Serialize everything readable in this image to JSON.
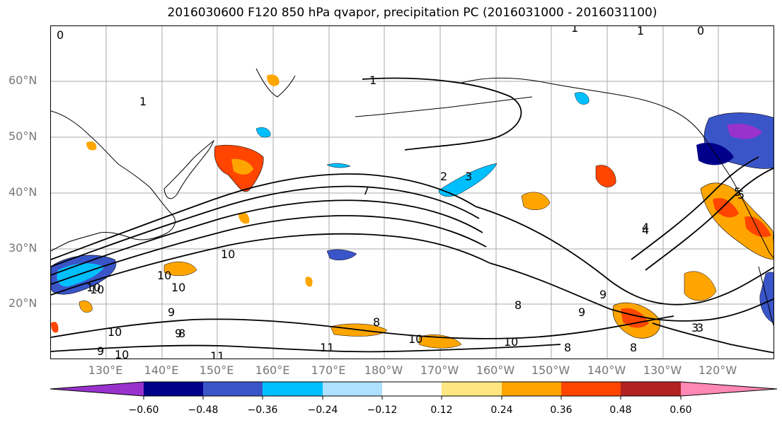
{
  "title": "2016030600 F120 850 hPa qvapor, precipitation PC (2016031000 - 2016031100)",
  "lat_labels": [
    "60°N",
    "50°N",
    "40°N",
    "30°N",
    "20°N"
  ],
  "lon_labels": [
    "130°E",
    "140°E",
    "150°E",
    "160°E",
    "170°E",
    "180°W",
    "170°W",
    "160°W",
    "150°W",
    "140°W",
    "130°W",
    "120°W"
  ],
  "colorbar": {
    "ticks": [
      "−0.60",
      "−0.48",
      "−0.36",
      "−0.24",
      "−0.12",
      "0.12",
      "0.24",
      "0.36",
      "0.48",
      "0.60"
    ],
    "colors": [
      "#9932cc",
      "#00008b",
      "#3a55c8",
      "#00bfff",
      "#aee0ff",
      "#ffffff",
      "#ffe680",
      "#ffa500",
      "#ff4500",
      "#b22222",
      "#ff88b4"
    ]
  },
  "contour_labels": [
    "1",
    "1",
    "0",
    "0",
    "1",
    "1",
    "2",
    "3",
    "4",
    "3",
    "5",
    "7",
    "10",
    "10",
    "10",
    "10",
    "10",
    "9",
    "9",
    "9",
    "8",
    "8",
    "8",
    "8",
    "11",
    "11",
    "10",
    "10",
    "10",
    "10",
    "9",
    "9",
    "8",
    "4",
    "3",
    "5"
  ]
}
